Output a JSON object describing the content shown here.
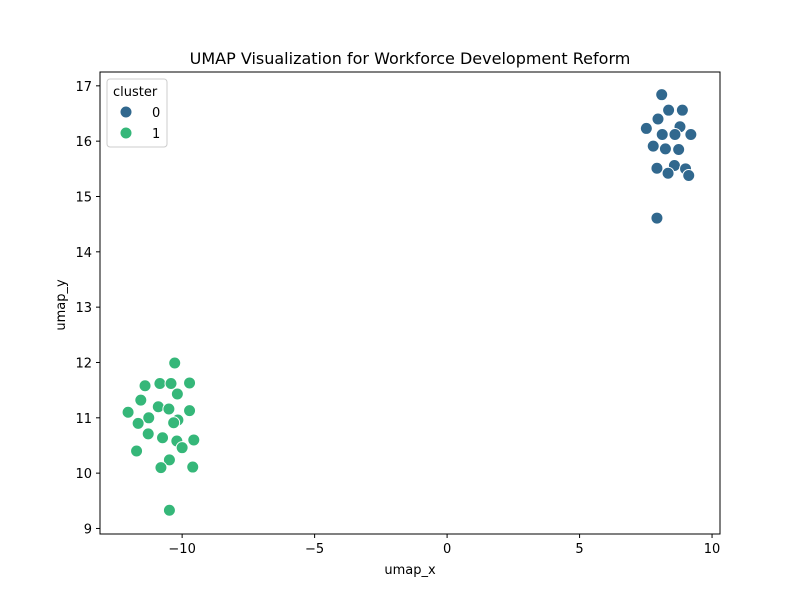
{
  "chart_data": {
    "type": "scatter",
    "title": "UMAP Visualization for Workforce Development Reform",
    "xlabel": "umap_x",
    "ylabel": "umap_y",
    "xlim": [
      -13.1,
      10.3
    ],
    "ylim": [
      8.9,
      17.25
    ],
    "xticks": [
      -10,
      -5,
      0,
      5,
      10
    ],
    "yticks": [
      9,
      10,
      11,
      12,
      13,
      14,
      15,
      16,
      17
    ],
    "grid": false,
    "legend": {
      "title": "cluster",
      "placement": "top-left"
    },
    "series": [
      {
        "name": "0",
        "color": "#31688e",
        "points": [
          [
            8.1,
            16.84
          ],
          [
            8.36,
            16.56
          ],
          [
            8.88,
            16.56
          ],
          [
            7.96,
            16.4
          ],
          [
            7.52,
            16.23
          ],
          [
            8.79,
            16.26
          ],
          [
            8.12,
            16.12
          ],
          [
            8.6,
            16.12
          ],
          [
            9.2,
            16.12
          ],
          [
            7.78,
            15.91
          ],
          [
            8.24,
            15.86
          ],
          [
            8.74,
            15.85
          ],
          [
            8.58,
            15.56
          ],
          [
            7.92,
            15.51
          ],
          [
            9.0,
            15.5
          ],
          [
            8.34,
            15.42
          ],
          [
            9.12,
            15.38
          ],
          [
            7.92,
            14.61
          ]
        ]
      },
      {
        "name": "1",
        "color": "#35b779",
        "points": [
          [
            -10.28,
            11.99
          ],
          [
            -11.4,
            11.58
          ],
          [
            -10.84,
            11.62
          ],
          [
            -10.42,
            11.62
          ],
          [
            -9.72,
            11.63
          ],
          [
            -10.18,
            11.43
          ],
          [
            -11.56,
            11.32
          ],
          [
            -10.9,
            11.2
          ],
          [
            -10.5,
            11.16
          ],
          [
            -9.72,
            11.13
          ],
          [
            -12.04,
            11.1
          ],
          [
            -11.26,
            11.0
          ],
          [
            -10.16,
            10.96
          ],
          [
            -10.32,
            10.91
          ],
          [
            -11.66,
            10.9
          ],
          [
            -11.28,
            10.71
          ],
          [
            -10.74,
            10.64
          ],
          [
            -10.2,
            10.58
          ],
          [
            -9.56,
            10.6
          ],
          [
            -10.0,
            10.46
          ],
          [
            -11.72,
            10.4
          ],
          [
            -10.48,
            10.24
          ],
          [
            -10.8,
            10.1
          ],
          [
            -9.6,
            10.11
          ],
          [
            -10.48,
            9.33
          ]
        ]
      }
    ]
  }
}
